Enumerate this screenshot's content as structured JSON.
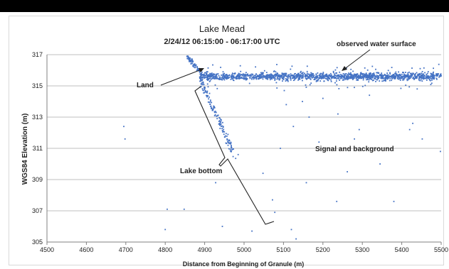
{
  "chart_data": {
    "type": "scatter",
    "title": "Lake Mead",
    "subtitle": "2/24/12 06:15:00 - 06:17:00 UTC",
    "xlabel": "Distance from Beginning of Granule (m)",
    "ylabel": "WGS84 Elevation (m)",
    "xlim": [
      4500,
      5500
    ],
    "ylim": [
      305,
      317
    ],
    "x_ticks": [
      "4500",
      "4600",
      "4700",
      "4800",
      "4900",
      "5000",
      "5100",
      "5200",
      "5300",
      "5400",
      "5500"
    ],
    "y_ticks": [
      "305",
      "307",
      "309",
      "311",
      "313",
      "315",
      "317"
    ],
    "grid": "horizontal",
    "legend": "none",
    "marker_color": "#4472c4",
    "annotations": {
      "water_surface": "observed water surface",
      "land": "Land",
      "signal": "Signal and background",
      "bottom": "Lake bottom"
    },
    "water_surface": {
      "x_range": [
        4890,
        5500
      ],
      "y_mean": 315.6,
      "y_spread": 0.25
    },
    "land_slope": [
      [
        4860,
        316.8
      ],
      [
        4875,
        316.4
      ],
      [
        4885,
        316.1
      ],
      [
        4895,
        315.7
      ]
    ],
    "sparse_points": [
      [
        4695,
        312.4
      ],
      [
        4698,
        311.6
      ],
      [
        4805,
        307.1
      ],
      [
        4800,
        305.8
      ],
      [
        4848,
        307.1
      ],
      [
        4928,
        308.8
      ],
      [
        4945,
        306.0
      ],
      [
        4985,
        310.6
      ],
      [
        5020,
        305.7
      ],
      [
        5048,
        309.4
      ],
      [
        5072,
        307.7
      ],
      [
        5078,
        306.9
      ],
      [
        5092,
        311.0
      ],
      [
        5102,
        314.7
      ],
      [
        5107,
        313.8
      ],
      [
        5120,
        305.8
      ],
      [
        5125,
        312.4
      ],
      [
        5132,
        305.2
      ],
      [
        5158,
        308.8
      ],
      [
        5165,
        313.0
      ],
      [
        5190,
        311.4
      ],
      [
        5200,
        314.2
      ],
      [
        5235,
        307.6
      ],
      [
        5238,
        313.2
      ],
      [
        5262,
        309.5
      ],
      [
        5280,
        311.6
      ],
      [
        5292,
        312.2
      ],
      [
        5345,
        310.0
      ],
      [
        5380,
        307.6
      ],
      [
        5420,
        312.2
      ],
      [
        5428,
        312.6
      ],
      [
        5452,
        311.6
      ],
      [
        5498,
        310.8
      ],
      [
        5318,
        314.4
      ],
      [
        5148,
        314.0
      ]
    ]
  }
}
